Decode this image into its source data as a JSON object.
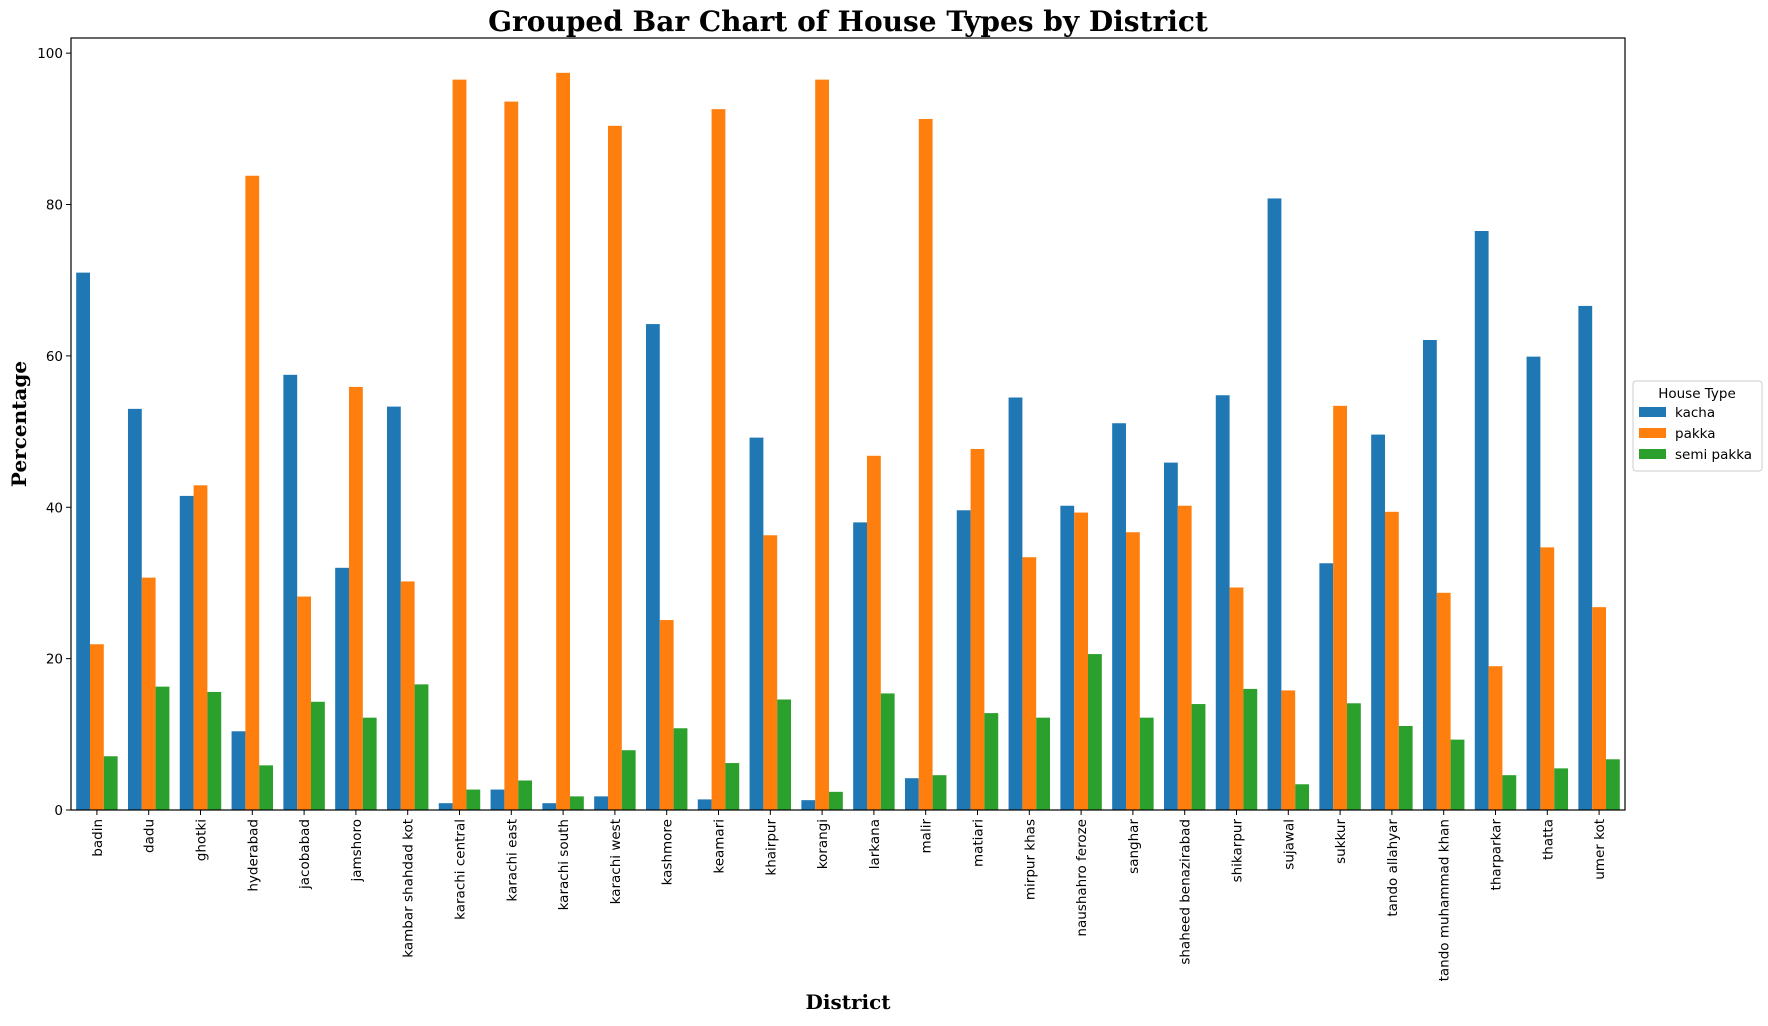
{
  "chart_data": {
    "type": "bar",
    "title": "Grouped Bar Chart of House Types by District",
    "xlabel": "District",
    "ylabel": "Percentage",
    "ylim": [
      0,
      102
    ],
    "yticks": [
      0,
      20,
      40,
      60,
      80,
      100
    ],
    "grid": false,
    "legend": {
      "title": "House Type",
      "placement": "outside-right"
    },
    "categories": [
      "badin",
      "dadu",
      "ghotki",
      "hyderabad",
      "jacobabad",
      "jamshoro",
      "kambar shahdad kot",
      "karachi central",
      "karachi east",
      "karachi south",
      "karachi west",
      "kashmore",
      "keamari",
      "khairpur",
      "korangi",
      "larkana",
      "malir",
      "matiari",
      "mirpur khas",
      "naushahro feroze",
      "sanghar",
      "shaheed benazirabad",
      "shikarpur",
      "sujawal",
      "sukkur",
      "tando allahyar",
      "tando muhammad khan",
      "tharparkar",
      "thatta",
      "umer kot"
    ],
    "series": [
      {
        "name": "kacha",
        "color": "#1f77b4",
        "values": [
          71.0,
          53.0,
          41.5,
          10.4,
          57.5,
          32.0,
          53.3,
          0.9,
          2.7,
          0.9,
          1.8,
          64.2,
          1.4,
          49.2,
          1.3,
          38.0,
          4.2,
          39.6,
          54.5,
          40.2,
          51.1,
          45.9,
          54.8,
          80.8,
          32.6,
          49.6,
          62.1,
          76.5,
          59.9,
          66.6
        ]
      },
      {
        "name": "pakka",
        "color": "#ff7f0e",
        "values": [
          21.9,
          30.7,
          42.9,
          83.8,
          28.2,
          55.9,
          30.2,
          96.5,
          93.6,
          97.4,
          90.4,
          25.1,
          92.6,
          36.3,
          96.5,
          46.8,
          91.3,
          47.7,
          33.4,
          39.3,
          36.7,
          40.2,
          29.4,
          15.8,
          53.4,
          39.4,
          28.7,
          19.0,
          34.7,
          26.8
        ]
      },
      {
        "name": "semi pakka",
        "color": "#2ca02c",
        "values": [
          7.1,
          16.3,
          15.6,
          5.9,
          14.3,
          12.2,
          16.6,
          2.7,
          3.9,
          1.8,
          7.9,
          10.8,
          6.2,
          14.6,
          2.4,
          15.4,
          4.6,
          12.8,
          12.2,
          20.6,
          12.2,
          14.0,
          16.0,
          3.4,
          14.1,
          11.1,
          9.3,
          4.6,
          5.5,
          6.7
        ]
      }
    ]
  }
}
